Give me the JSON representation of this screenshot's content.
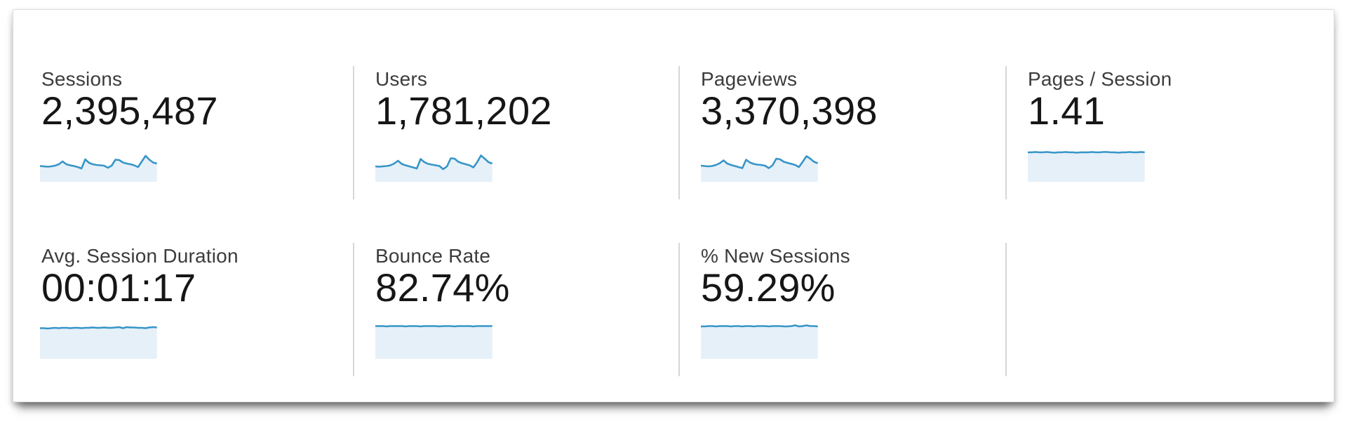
{
  "colors": {
    "spark_line": "#3795c7",
    "spark_fill": "#e6f0f9",
    "divider": "#d6d6d6",
    "label_text": "#3c3c3c",
    "value_text": "#161616",
    "panel_border": "#dcdcdc",
    "background": "#ffffff"
  },
  "cards": [
    {
      "id": "sessions",
      "label": "Sessions",
      "value": "2,395,487",
      "spark_type": "area",
      "sparkline": [
        0.45,
        0.44,
        0.43,
        0.44,
        0.46,
        0.5,
        0.58,
        0.5,
        0.47,
        0.45,
        0.42,
        0.38,
        0.64,
        0.54,
        0.5,
        0.48,
        0.47,
        0.46,
        0.4,
        0.46,
        0.63,
        0.62,
        0.55,
        0.52,
        0.5,
        0.47,
        0.42,
        0.58,
        0.74,
        0.63,
        0.55,
        0.52
      ]
    },
    {
      "id": "users",
      "label": "Users",
      "value": "1,781,202",
      "spark_type": "area",
      "sparkline": [
        0.44,
        0.43,
        0.44,
        0.45,
        0.47,
        0.52,
        0.6,
        0.51,
        0.47,
        0.44,
        0.41,
        0.38,
        0.65,
        0.56,
        0.51,
        0.49,
        0.47,
        0.45,
        0.36,
        0.44,
        0.67,
        0.66,
        0.57,
        0.53,
        0.5,
        0.47,
        0.41,
        0.56,
        0.75,
        0.66,
        0.56,
        0.52
      ]
    },
    {
      "id": "pageviews",
      "label": "Pageviews",
      "value": "3,370,398",
      "spark_type": "area",
      "sparkline": [
        0.46,
        0.45,
        0.44,
        0.45,
        0.48,
        0.53,
        0.61,
        0.52,
        0.48,
        0.45,
        0.42,
        0.39,
        0.63,
        0.55,
        0.51,
        0.49,
        0.48,
        0.46,
        0.39,
        0.47,
        0.66,
        0.64,
        0.57,
        0.54,
        0.51,
        0.48,
        0.42,
        0.57,
        0.73,
        0.66,
        0.57,
        0.53
      ]
    },
    {
      "id": "pages-per-session",
      "label": "Pages / Session",
      "value": "1.41",
      "spark_type": "area",
      "sparkline": [
        0.84,
        0.84,
        0.85,
        0.84,
        0.84,
        0.85,
        0.84,
        0.83,
        0.84,
        0.84,
        0.85,
        0.84,
        0.84,
        0.83,
        0.84,
        0.84,
        0.84,
        0.85,
        0.84,
        0.84,
        0.85,
        0.85,
        0.84,
        0.84,
        0.83,
        0.84,
        0.84,
        0.85,
        0.84,
        0.84,
        0.85,
        0.84
      ]
    },
    {
      "id": "avg-session-duration",
      "label": "Avg. Session Duration",
      "value": "00:01:17",
      "spark_type": "area",
      "sparkline": [
        0.87,
        0.87,
        0.86,
        0.87,
        0.88,
        0.87,
        0.88,
        0.88,
        0.87,
        0.88,
        0.88,
        0.87,
        0.88,
        0.88,
        0.89,
        0.88,
        0.88,
        0.89,
        0.88,
        0.88,
        0.89,
        0.9,
        0.87,
        0.9,
        0.89,
        0.89,
        0.88,
        0.88,
        0.87,
        0.89,
        0.9,
        0.89
      ]
    },
    {
      "id": "bounce-rate",
      "label": "Bounce Rate",
      "value": "82.74%",
      "spark_type": "area",
      "sparkline": [
        0.93,
        0.93,
        0.93,
        0.92,
        0.93,
        0.93,
        0.93,
        0.93,
        0.92,
        0.93,
        0.93,
        0.93,
        0.92,
        0.93,
        0.93,
        0.93,
        0.93,
        0.92,
        0.93,
        0.93,
        0.93,
        0.92,
        0.93,
        0.93,
        0.93,
        0.93,
        0.92,
        0.93,
        0.93,
        0.93,
        0.93,
        0.93
      ]
    },
    {
      "id": "new-sessions",
      "label": "% New Sessions",
      "value": "59.29%",
      "spark_type": "area",
      "sparkline": [
        0.92,
        0.92,
        0.93,
        0.93,
        0.92,
        0.93,
        0.93,
        0.93,
        0.92,
        0.93,
        0.93,
        0.92,
        0.93,
        0.93,
        0.92,
        0.93,
        0.93,
        0.93,
        0.92,
        0.93,
        0.93,
        0.93,
        0.92,
        0.92,
        0.93,
        0.95,
        0.92,
        0.93,
        0.95,
        0.93,
        0.93,
        0.92
      ]
    }
  ]
}
